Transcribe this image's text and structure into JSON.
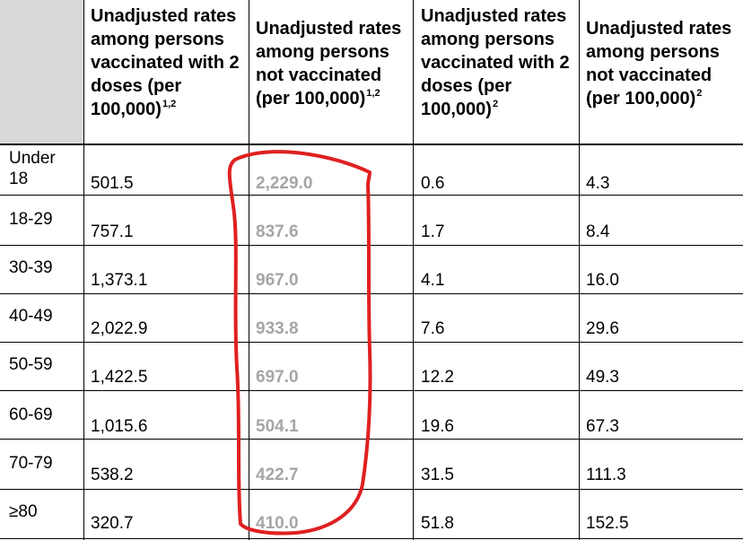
{
  "table": {
    "headers": [
      {
        "text": "Unadjusted rates among persons vaccinated with 2 doses (per 100,000)",
        "sup": "1,2"
      },
      {
        "text": "Unadjusted rates among persons not vaccinated (per 100,000)",
        "sup": "1,2"
      },
      {
        "text": "Unadjusted rates among persons vaccinated with 2 doses (per 100,000)",
        "sup": "2"
      },
      {
        "text": "Unadjusted rates among persons not vaccinated (per 100,000)",
        "sup": "2"
      }
    ],
    "rows": [
      {
        "age": "Under 18",
        "v1": "501.5",
        "v2": "2,229.0",
        "v3": "0.6",
        "v4": "4.3"
      },
      {
        "age": "18-29",
        "v1": "757.1",
        "v2": "837.6",
        "v3": "1.7",
        "v4": "8.4"
      },
      {
        "age": "30-39",
        "v1": "1,373.1",
        "v2": "967.0",
        "v3": "4.1",
        "v4": "16.0"
      },
      {
        "age": "40-49",
        "v1": "2,022.9",
        "v2": "933.8",
        "v3": "7.6",
        "v4": "29.6"
      },
      {
        "age": "50-59",
        "v1": "1,422.5",
        "v2": "697.0",
        "v3": "12.2",
        "v4": "49.3"
      },
      {
        "age": "60-69",
        "v1": "1,015.6",
        "v2": "504.1",
        "v3": "19.6",
        "v4": "67.3"
      },
      {
        "age": "70-79",
        "v1": "538.2",
        "v2": "422.7",
        "v3": "31.5",
        "v4": "111.3"
      },
      {
        "age": "≥80",
        "v1": "320.7",
        "v2": "410.0",
        "v3": "51.8",
        "v4": "152.5"
      }
    ]
  },
  "colors": {
    "header_bg": "#d9d9d9",
    "highlight_text": "#a6a6a6",
    "annotation": "#e02020"
  }
}
